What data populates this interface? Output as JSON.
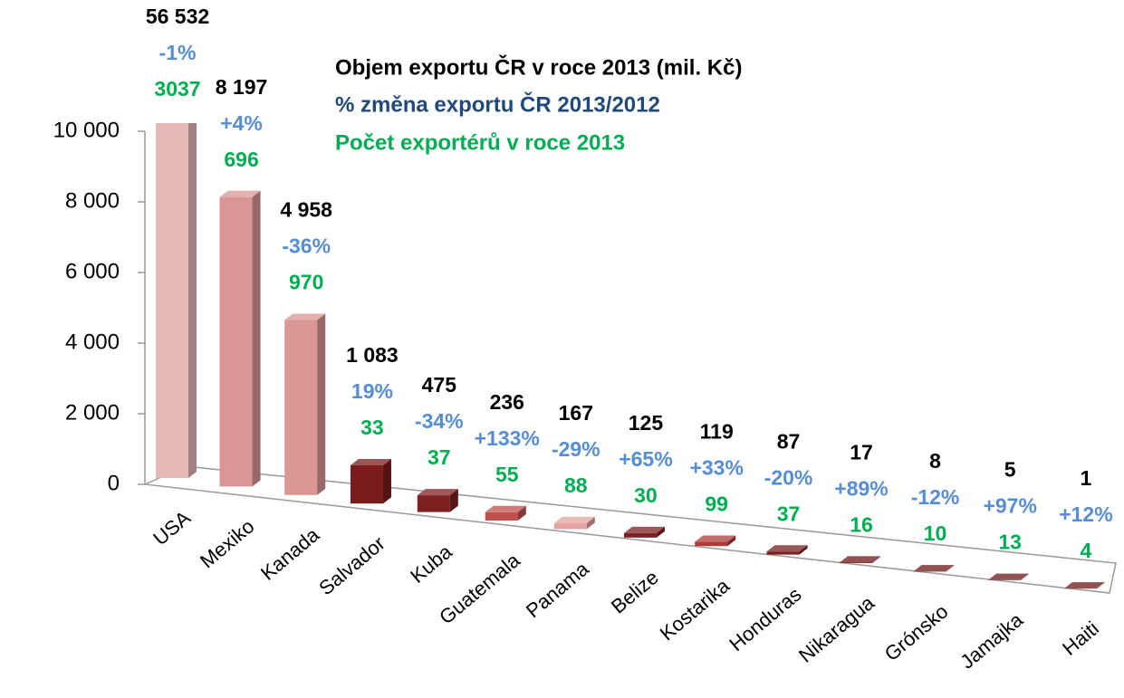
{
  "chart_data": {
    "type": "bar3d",
    "categories": [
      "USA",
      "Mexiko",
      "Kanada",
      "Salvador",
      "Kuba",
      "Guatemala",
      "Panama",
      "Belize",
      "Kostarika",
      "Honduras",
      "Nikaragua",
      "Grónsko",
      "Jamajka",
      "Haiti"
    ],
    "bar_colors": [
      "#e6b9b8",
      "#d99694",
      "#da9794",
      "#7b1c1c",
      "#7e2020",
      "#c0504d",
      "#e6a3a1",
      "#7a2020",
      "#b03a3a",
      "#7a2020",
      "#6e1818",
      "#6e1818",
      "#6e1818",
      "#6e1818"
    ],
    "series": [
      {
        "name": "Objem exportu ČR v roce 2013 (mil. Kč)",
        "color": "#000000",
        "values": [
          56532,
          8197,
          4958,
          1083,
          475,
          236,
          167,
          125,
          119,
          87,
          17,
          8,
          5,
          1
        ],
        "value_labels": [
          "56 532",
          "8 197",
          "4 958",
          "1 083",
          "475",
          "236",
          "167",
          "125",
          "119",
          "87",
          "17",
          "8",
          "5",
          "1"
        ]
      },
      {
        "name": "% změna exportu ČR 2013/2012",
        "color": "#558ed5",
        "values": [
          -1,
          4,
          -36,
          19,
          -34,
          133,
          -29,
          65,
          33,
          -20,
          89,
          -12,
          97,
          12
        ],
        "value_labels": [
          "-1%",
          "+4%",
          "-36%",
          "19%",
          "-34%",
          "+133%",
          "-29%",
          "+65%",
          "+33%",
          "-20%",
          "+89%",
          "-12%",
          "+97%",
          "+12%"
        ]
      },
      {
        "name": "Počet exportérů v roce 2013",
        "color": "#00b050",
        "values": [
          3037,
          696,
          970,
          33,
          37,
          55,
          88,
          30,
          99,
          37,
          16,
          10,
          13,
          4
        ]
      }
    ],
    "ylim": [
      0,
      10000
    ],
    "yticks": [
      0,
      {
        "value": 2000,
        "label": "2 000"
      },
      {
        "value": 4000,
        "label": "4 000"
      },
      {
        "value": 6000,
        "label": "6 000"
      },
      {
        "value": 8000,
        "label": "8 000"
      },
      {
        "value": 10000,
        "label": "10 000"
      }
    ]
  }
}
